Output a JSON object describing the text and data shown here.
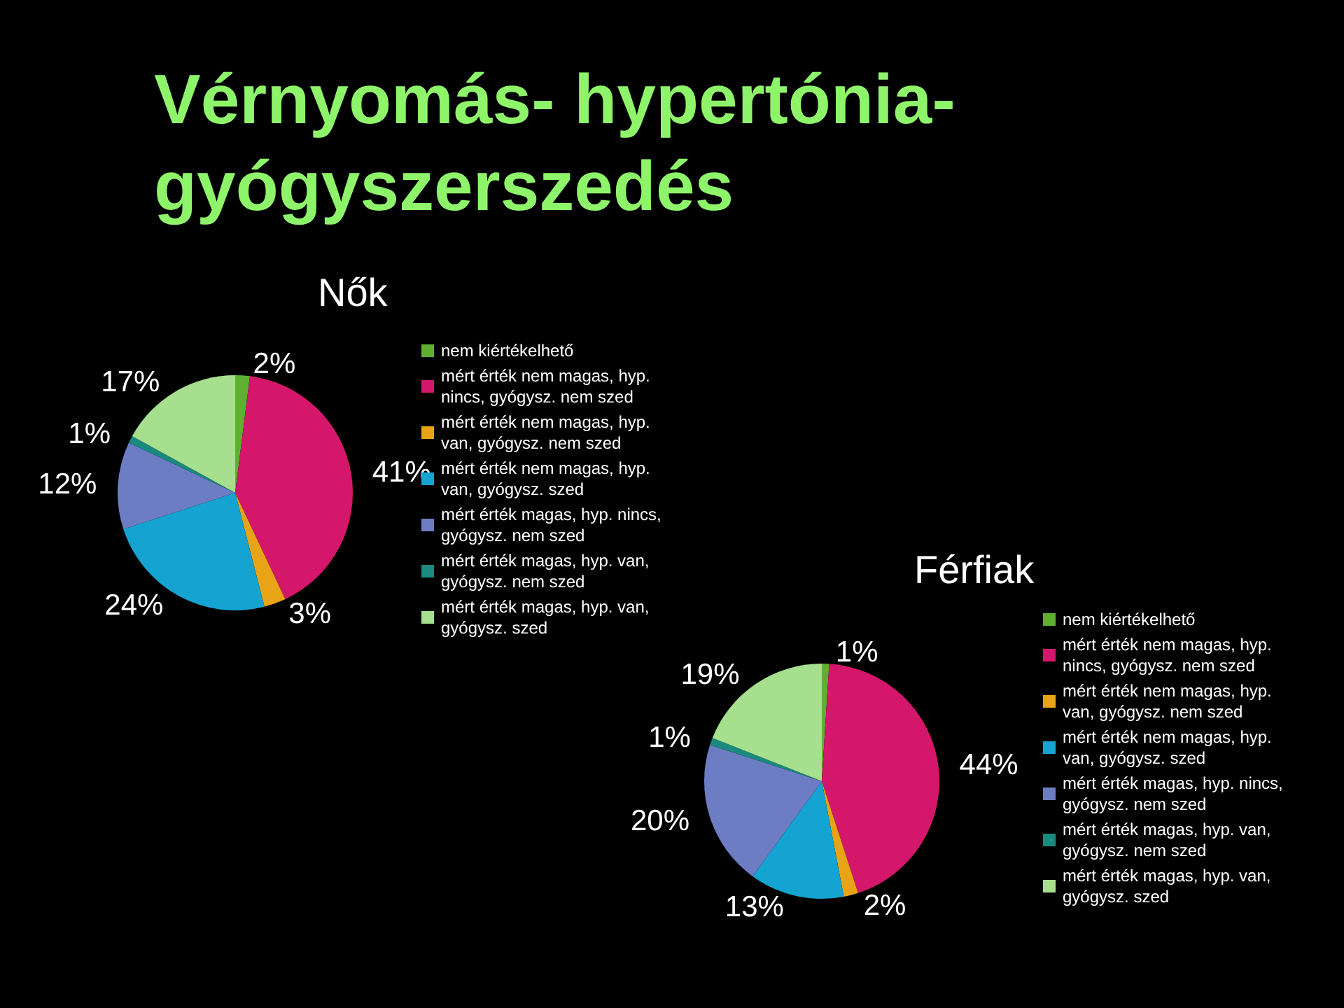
{
  "chart_data": [
    {
      "type": "pie",
      "title": "Vérnyomás- hypertónia-gyógyszerszedés",
      "subtitle": "Nők",
      "categories": [
        "nem kiértékelhető",
        "mért érték nem magas, hyp. nincs, gyógysz. nem szed",
        "mért érték nem magas, hyp. van, gyógysz. nem szed",
        "mért érték nem magas, hyp. van, gyógysz. szed",
        "mért érték magas, hyp. nincs, gyógysz. nem szed",
        "mért érték magas, hyp. van, gyógysz. nem szed",
        "mért érték magas, hyp. van, gyógysz. szed"
      ],
      "values": [
        2,
        41,
        3,
        24,
        12,
        1,
        17
      ],
      "colors": [
        "#5fb030",
        "#d4176a",
        "#e8a317",
        "#15a3d2",
        "#6c7dc4",
        "#1a8a7f",
        "#a6df8e"
      ],
      "value_labels": [
        "2%",
        "41%",
        "3%",
        "24%",
        "12%",
        "1%",
        "17%"
      ],
      "legend": "right"
    },
    {
      "type": "pie",
      "title": "Férfiak",
      "categories": [
        "nem kiértékelhető",
        "mért érték nem magas, hyp. nincs, gyógysz. nem szed",
        "mért érték nem magas, hyp. van, gyógysz. nem szed",
        "mért érték nem magas, hyp. van, gyógysz. szed",
        "mért érték magas, hyp. nincs, gyógysz. nem szed",
        "mért érték magas, hyp. van, gyógysz. nem szed",
        "mért érték magas, hyp. van, gyógysz. szed"
      ],
      "values": [
        1,
        44,
        2,
        13,
        20,
        1,
        19
      ],
      "colors": [
        "#5fb030",
        "#d4176a",
        "#e8a317",
        "#15a3d2",
        "#6c7dc4",
        "#1a8a7f",
        "#a6df8e"
      ],
      "value_labels": [
        "1%",
        "44%",
        "2%",
        "13%",
        "20%",
        "1%",
        "19%"
      ],
      "legend": "right"
    }
  ]
}
